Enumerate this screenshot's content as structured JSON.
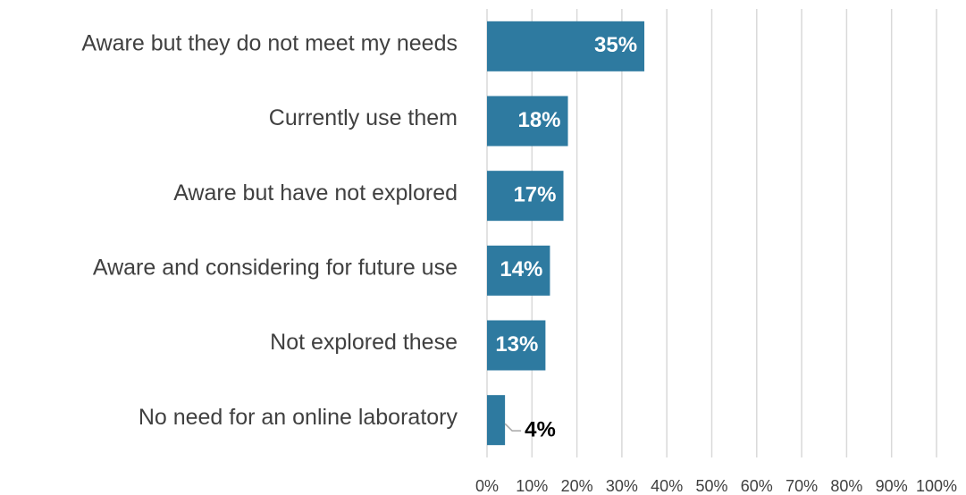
{
  "chart_data": {
    "type": "bar",
    "orientation": "horizontal",
    "categories": [
      "Aware but they do not meet my needs",
      "Currently use them",
      "Aware but have not explored",
      "Aware and considering for future use",
      "Not explored these",
      "No need for an online laboratory"
    ],
    "values": [
      35,
      18,
      17,
      14,
      13,
      4
    ],
    "value_labels": [
      "35%",
      "18%",
      "17%",
      "14%",
      "13%",
      "4%"
    ],
    "color": "#2e7aa0",
    "xlim": [
      0,
      100
    ],
    "xticks": [
      {
        "value": 0,
        "label": "0%"
      },
      {
        "value": 10,
        "label": "10%"
      },
      {
        "value": 20,
        "label": "20%"
      },
      {
        "value": 30,
        "label": "30%"
      },
      {
        "value": 40,
        "label": "40%"
      },
      {
        "value": 50,
        "label": "50%"
      },
      {
        "value": 60,
        "label": "60%"
      },
      {
        "value": 70,
        "label": "70%"
      },
      {
        "value": 80,
        "label": "80%"
      },
      {
        "value": 90,
        "label": "90%"
      },
      {
        "value": 100,
        "label": "100%"
      }
    ],
    "grid": true
  }
}
